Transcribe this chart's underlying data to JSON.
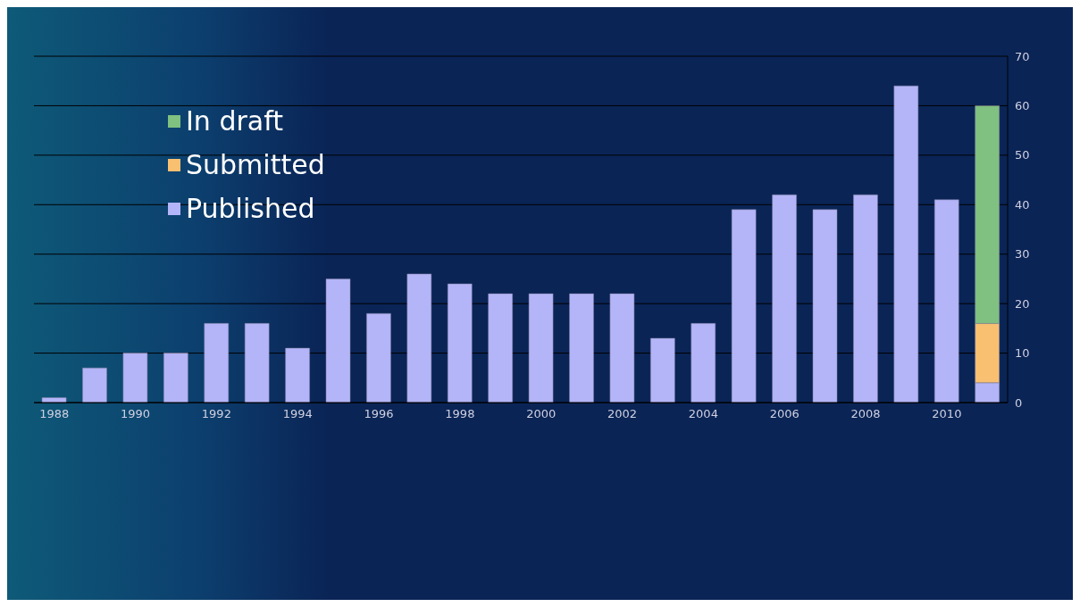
{
  "chart_data": {
    "type": "bar",
    "stacked": true,
    "categories": [
      "1988",
      null,
      "1990",
      null,
      "1992",
      null,
      "1994",
      null,
      "1996",
      null,
      "1998",
      null,
      "2000",
      null,
      "2002",
      null,
      "2004",
      null,
      "2006",
      null,
      "2008",
      null,
      "2010",
      null
    ],
    "series": [
      {
        "name": "Published",
        "color": "#b4b4f8",
        "values": [
          1,
          7,
          10,
          10,
          16,
          16,
          11,
          25,
          18,
          26,
          24,
          22,
          22,
          22,
          22,
          13,
          16,
          39,
          42,
          39,
          42,
          64,
          41,
          4
        ]
      },
      {
        "name": "Submitted",
        "color": "#f8c070",
        "values": [
          null,
          null,
          null,
          null,
          null,
          null,
          null,
          null,
          null,
          null,
          null,
          null,
          null,
          null,
          null,
          null,
          null,
          null,
          null,
          null,
          null,
          null,
          null,
          12
        ]
      },
      {
        "name": "In draft",
        "color": "#80c080",
        "values": [
          null,
          null,
          null,
          null,
          null,
          null,
          null,
          null,
          null,
          null,
          null,
          null,
          null,
          null,
          null,
          null,
          null,
          null,
          null,
          null,
          null,
          null,
          null,
          44
        ]
      }
    ],
    "ylim": [
      0,
      70
    ],
    "yticks": [
      0,
      10,
      20,
      30,
      40,
      50,
      60,
      70
    ],
    "grid": "y",
    "legend": "top left"
  }
}
